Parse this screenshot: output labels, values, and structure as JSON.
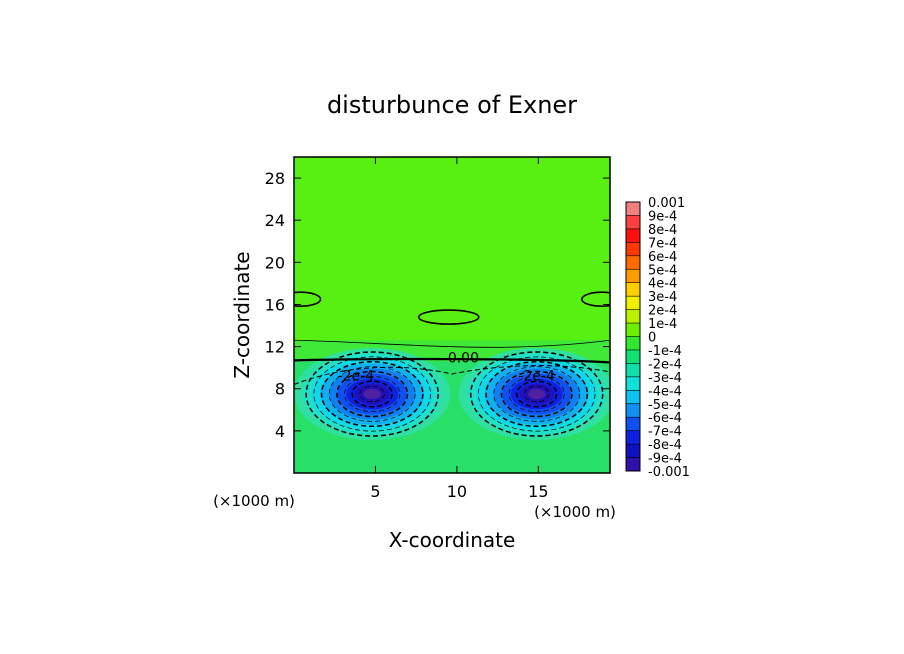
{
  "chart_data": {
    "type": "heatmap",
    "title": "disturbunce of Exner",
    "xlabel": "X-coordinate",
    "ylabel": "Z-coordinate",
    "x_unit_left": "(×1000 m)",
    "x_unit_right": "(×1000 m)",
    "xlim": [
      0,
      19.4
    ],
    "ylim": [
      0,
      30
    ],
    "x_ticks": [
      "5",
      "10",
      "15"
    ],
    "x_tick_values": [
      5,
      10,
      15
    ],
    "y_ticks": [
      "4",
      "8",
      "12",
      "16",
      "20",
      "24",
      "28"
    ],
    "y_tick_values": [
      4,
      8,
      12,
      16,
      20,
      24,
      28
    ],
    "contour_labels": [
      {
        "text": "0.00",
        "x": 10.4,
        "z": 10.5
      },
      {
        "text": "-2e-4",
        "x": 3.8,
        "z": 8.8
      },
      {
        "text": "-2e-4",
        "x": 14.9,
        "z": 8.8
      }
    ],
    "field": {
      "background": 7e-05,
      "negative_centers": [
        {
          "x": 4.8,
          "z": 7.5,
          "min": -0.001
        },
        {
          "x": 14.9,
          "z": 7.5,
          "min": -0.001
        }
      ],
      "positive_cells": [
        {
          "x": 9.5,
          "z": 14.8,
          "max": 0.0001
        },
        {
          "x": 0.4,
          "z": 16.5,
          "max": 0.0001
        },
        {
          "x": 18.9,
          "z": 16.5,
          "max": 0.0001
        }
      ],
      "zero_line_z": 10.6
    },
    "colorbar": {
      "labels": [
        "0.001",
        "9e-4",
        "8e-4",
        "7e-4",
        "6e-4",
        "5e-4",
        "4e-4",
        "3e-4",
        "2e-4",
        "1e-4",
        "0",
        "-1e-4",
        "-2e-4",
        "-3e-4",
        "-4e-4",
        "-5e-4",
        "-6e-4",
        "-7e-4",
        "-8e-4",
        "-9e-4",
        "-0.001"
      ],
      "colors": [
        "#f08080",
        "#ff4040",
        "#ff1010",
        "#ff3800",
        "#ff6a00",
        "#ff9a00",
        "#ffd000",
        "#f0f000",
        "#b8f000",
        "#6cf000",
        "#30e830",
        "#10e070",
        "#10e0a8",
        "#10e0d8",
        "#10c0f0",
        "#1090f0",
        "#1050f0",
        "#1020e0",
        "#1010c0",
        "#3010a8",
        "#6020a0"
      ]
    }
  }
}
